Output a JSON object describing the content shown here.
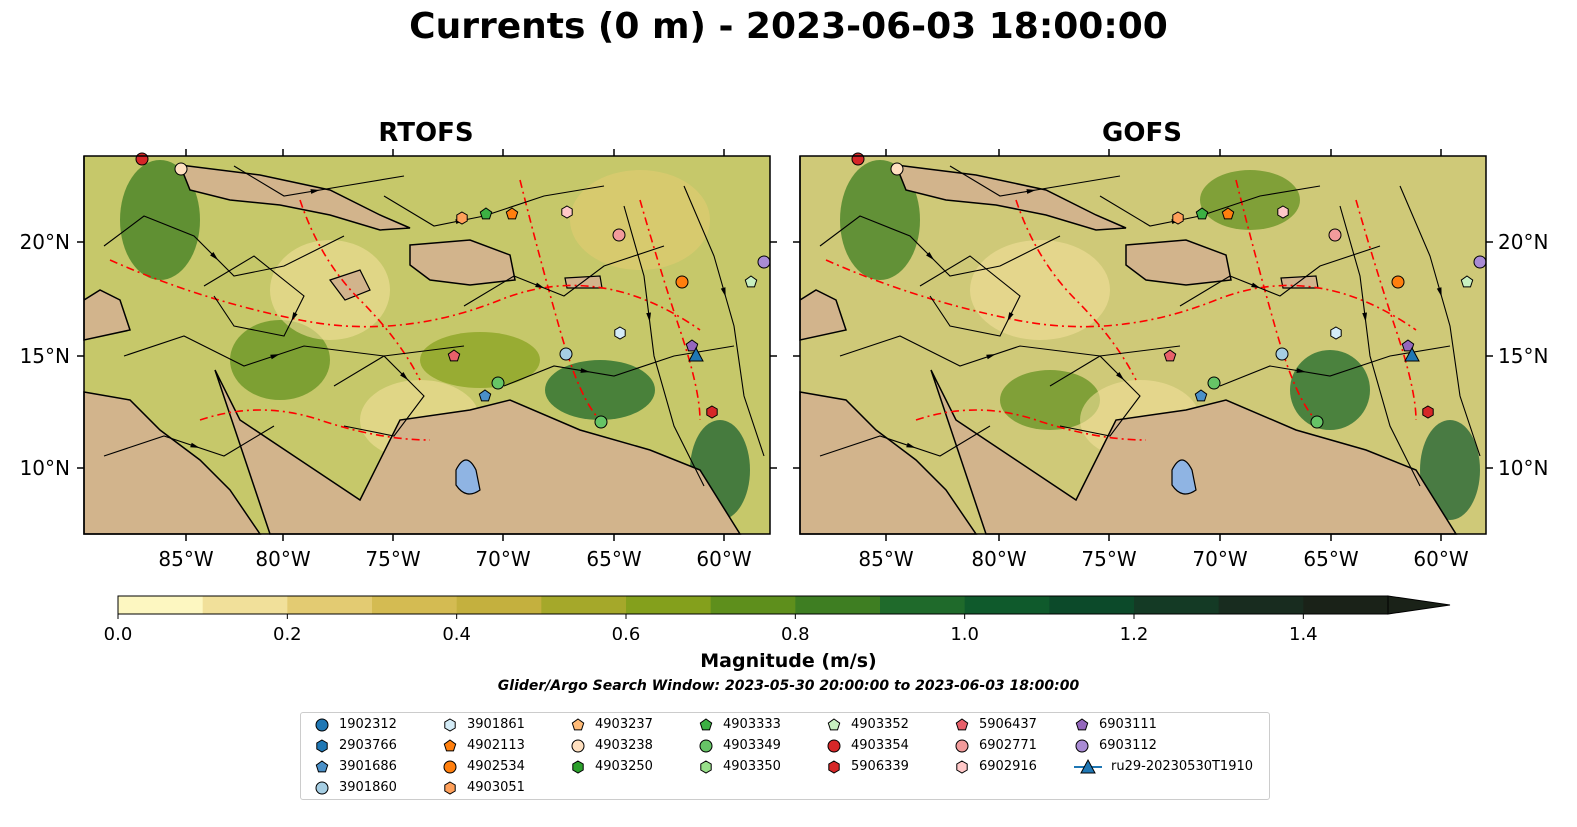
{
  "title": "Currents (0 m) - 2023-06-03 18:00:00",
  "panels": [
    {
      "title": "RTOFS"
    },
    {
      "title": "GOFS"
    }
  ],
  "axes": {
    "lon_ticks": [
      "85°W",
      "80°W",
      "75°W",
      "70°W",
      "65°W",
      "60°W"
    ],
    "lat_ticks": [
      "20°N",
      "15°N",
      "10°N"
    ]
  },
  "colors": {
    "land": "#d2b48c",
    "lake": "#8fb4e3",
    "eez_line": "#ff0000",
    "colormap": [
      "#fdf7c1",
      "#f1e09a",
      "#e3cb72",
      "#d4bb52",
      "#c4b03e",
      "#a5a82a",
      "#84a01c",
      "#5e8f1c",
      "#3e7e22",
      "#1f6a2b",
      "#0f5a2c",
      "#0c4a2a",
      "#143a25",
      "#182c1f",
      "#1a2218"
    ]
  },
  "colorbar": {
    "title": "Magnitude (m/s)",
    "ticks": [
      "0.0",
      "0.2",
      "0.4",
      "0.6",
      "0.8",
      "1.0",
      "1.2",
      "1.4"
    ],
    "min": 0.0,
    "max": 1.5,
    "extend": "max"
  },
  "search_window": "Glider/Argo Search Window: 2023-05-30 20:00:00 to 2023-06-03 18:00:00",
  "legend": [
    {
      "label": "1902312",
      "marker": "circle",
      "color": "#1f77b4"
    },
    {
      "label": "2903766",
      "marker": "hexagon",
      "color": "#1f77b4"
    },
    {
      "label": "3901686",
      "marker": "pentagon",
      "color": "#4a90c8"
    },
    {
      "label": "3901860",
      "marker": "circle",
      "color": "#a6cee3"
    },
    {
      "label": "3901861",
      "marker": "hexagon",
      "color": "#d4ecf7"
    },
    {
      "label": "4902113",
      "marker": "pentagon",
      "color": "#ff7f0e"
    },
    {
      "label": "4902534",
      "marker": "circle",
      "color": "#ff7f0e"
    },
    {
      "label": "4903051",
      "marker": "hexagon",
      "color": "#ffa05a"
    },
    {
      "label": "4903237",
      "marker": "pentagon",
      "color": "#ffbb78"
    },
    {
      "label": "4903238",
      "marker": "circle",
      "color": "#ffe0c0"
    },
    {
      "label": "4903250",
      "marker": "hexagon",
      "color": "#2ca02c"
    },
    {
      "label": "4903333",
      "marker": "pentagon",
      "color": "#3cb043"
    },
    {
      "label": "4903349",
      "marker": "circle",
      "color": "#66c466"
    },
    {
      "label": "4903350",
      "marker": "hexagon",
      "color": "#98df8a"
    },
    {
      "label": "4903352",
      "marker": "pentagon",
      "color": "#c8f0c0"
    },
    {
      "label": "4903354",
      "marker": "circle",
      "color": "#d62728"
    },
    {
      "label": "5906339",
      "marker": "hexagon",
      "color": "#d62728"
    },
    {
      "label": "5906437",
      "marker": "pentagon",
      "color": "#e8606a"
    },
    {
      "label": "6902771",
      "marker": "circle",
      "color": "#f29b9b"
    },
    {
      "label": "6902916",
      "marker": "hexagon",
      "color": "#ffc8c8"
    },
    {
      "label": "6903111",
      "marker": "pentagon",
      "color": "#9467bd"
    },
    {
      "label": "6903112",
      "marker": "circle",
      "color": "#a98bd4"
    },
    {
      "label": "ru29-20230530T1910",
      "marker": "triangle-line",
      "color": "#1f77b4"
    }
  ]
}
